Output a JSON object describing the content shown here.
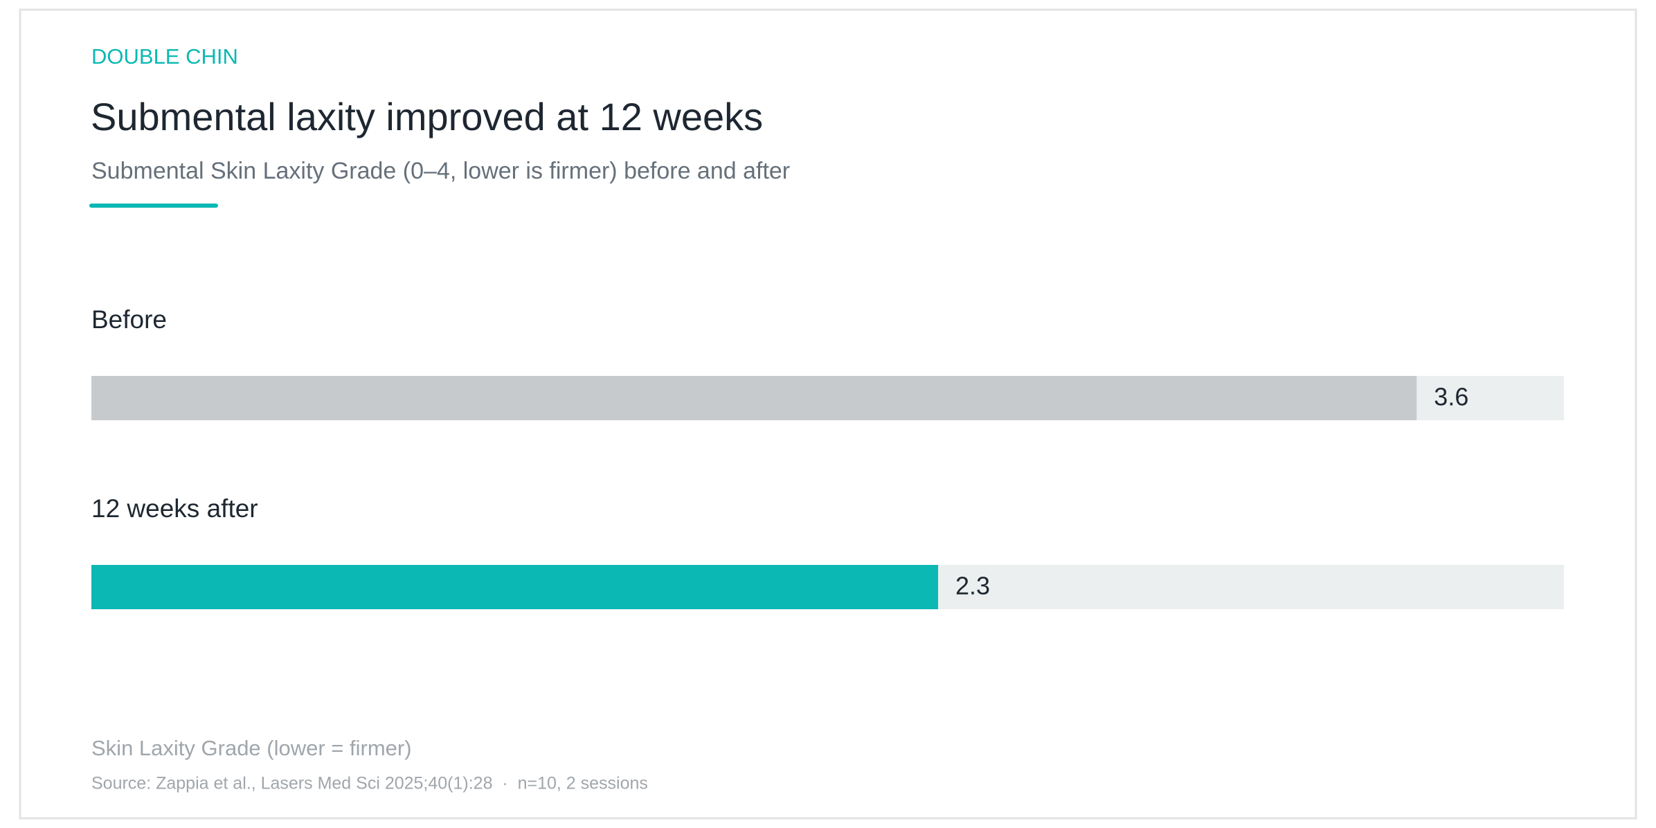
{
  "chart_data": {
    "type": "bar",
    "orientation": "horizontal",
    "eyebrow": "DOUBLE CHIN",
    "title": "Submental laxity improved at 12 weeks",
    "subtitle": "Submental Skin Laxity Grade (0–4, lower is firmer) before and after",
    "categories": [
      "Before",
      "12 weeks after"
    ],
    "values": [
      3.6,
      2.3
    ],
    "colors": [
      "#c6cacd",
      "#0bb8b4"
    ],
    "track_color": "#eceff0",
    "xlim": [
      0,
      4
    ],
    "x_label": "Skin Laxity Grade (lower = firmer)",
    "source": "Source: Zappia et al., Lasers Med Sci 2025;40(1):28  ·  n=10, 2 sessions"
  }
}
